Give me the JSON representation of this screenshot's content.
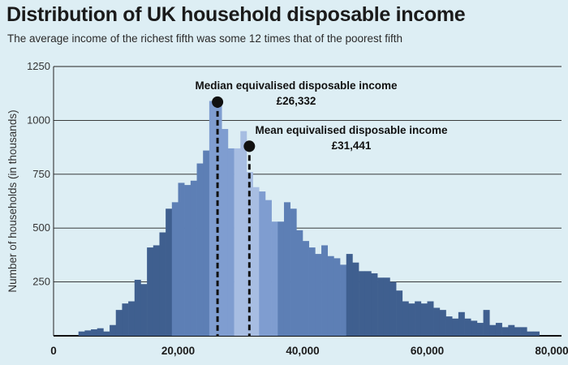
{
  "chart_data": {
    "type": "bar",
    "title": "Distribution of UK household disposable income",
    "subtitle": "The average income of the richest fifth was some 12 times that of the poorest fifth",
    "ylabel": "Number of households (in thousands)",
    "xlabel": "",
    "xlim": [
      0,
      80000
    ],
    "ylim": [
      0,
      1250
    ],
    "x_ticks": [
      0,
      20000,
      40000,
      60000,
      80000
    ],
    "x_tick_labels": [
      "0",
      "20,000",
      "40,000",
      "60,000",
      "80,000"
    ],
    "y_ticks": [
      250,
      500,
      750,
      1000,
      1250
    ],
    "y_tick_labels": [
      "250",
      "500",
      "750",
      "1000",
      "1250"
    ],
    "grid": "horizontal",
    "bin_width": 1000,
    "bins_start": [
      4000,
      5000,
      6000,
      7000,
      8000,
      9000,
      10000,
      11000,
      12000,
      13000,
      14000,
      15000,
      16000,
      17000,
      18000,
      19000,
      20000,
      21000,
      22000,
      23000,
      24000,
      25000,
      26000,
      27000,
      28000,
      29000,
      30000,
      31000,
      32000,
      33000,
      34000,
      35000,
      36000,
      37000,
      38000,
      39000,
      40000,
      41000,
      42000,
      43000,
      44000,
      45000,
      46000,
      47000,
      48000,
      49000,
      50000,
      51000,
      52000,
      53000,
      54000,
      55000,
      56000,
      57000,
      58000,
      59000,
      60000,
      61000,
      62000,
      63000,
      64000,
      65000,
      66000,
      67000,
      68000,
      69000,
      70000,
      71000,
      72000,
      73000,
      74000,
      75000,
      76000,
      77000
    ],
    "values": [
      20,
      25,
      30,
      35,
      20,
      50,
      120,
      150,
      160,
      260,
      240,
      410,
      420,
      480,
      590,
      620,
      710,
      700,
      720,
      800,
      860,
      1090,
      1070,
      960,
      870,
      870,
      950,
      760,
      690,
      670,
      630,
      530,
      530,
      620,
      590,
      490,
      440,
      410,
      380,
      420,
      370,
      360,
      330,
      380,
      340,
      300,
      300,
      290,
      270,
      270,
      250,
      210,
      160,
      150,
      160,
      150,
      160,
      130,
      120,
      90,
      80,
      110,
      80,
      70,
      60,
      120,
      50,
      60,
      40,
      50,
      40,
      40,
      20,
      20
    ],
    "shades": [
      "dark",
      "dark",
      "dark",
      "dark",
      "dark",
      "dark",
      "dark",
      "dark",
      "dark",
      "dark",
      "dark",
      "dark",
      "dark",
      "dark",
      "dark",
      "mid",
      "mid",
      "mid",
      "mid",
      "mid",
      "mid",
      "light",
      "light",
      "light",
      "light",
      "pale",
      "pale",
      "pale",
      "pale",
      "light",
      "light",
      "light",
      "mid",
      "mid",
      "mid",
      "mid",
      "mid",
      "mid",
      "mid",
      "mid",
      "mid",
      "mid",
      "mid",
      "dark",
      "dark",
      "dark",
      "dark",
      "dark",
      "dark",
      "dark",
      "dark",
      "dark",
      "dark",
      "dark",
      "dark",
      "dark",
      "dark",
      "dark",
      "dark",
      "dark",
      "dark",
      "dark",
      "dark",
      "dark",
      "dark",
      "dark",
      "dark",
      "dark",
      "dark",
      "dark",
      "dark",
      "dark",
      "dark",
      "dark"
    ],
    "annotations": [
      {
        "label": "Median equivalised disposable income",
        "value_label": "£26,332",
        "x": 26332,
        "marker_y": 1085
      },
      {
        "label": "Mean equivalised disposable income",
        "value_label": "£31,441",
        "x": 31441,
        "marker_y": 880
      }
    ],
    "colors": {
      "dark": "#3f5f8f",
      "mid": "#5d7fb5",
      "light": "#7f9dd0",
      "pale": "#a7bde2",
      "grid": "#222222",
      "background": "#ddeef4"
    }
  }
}
